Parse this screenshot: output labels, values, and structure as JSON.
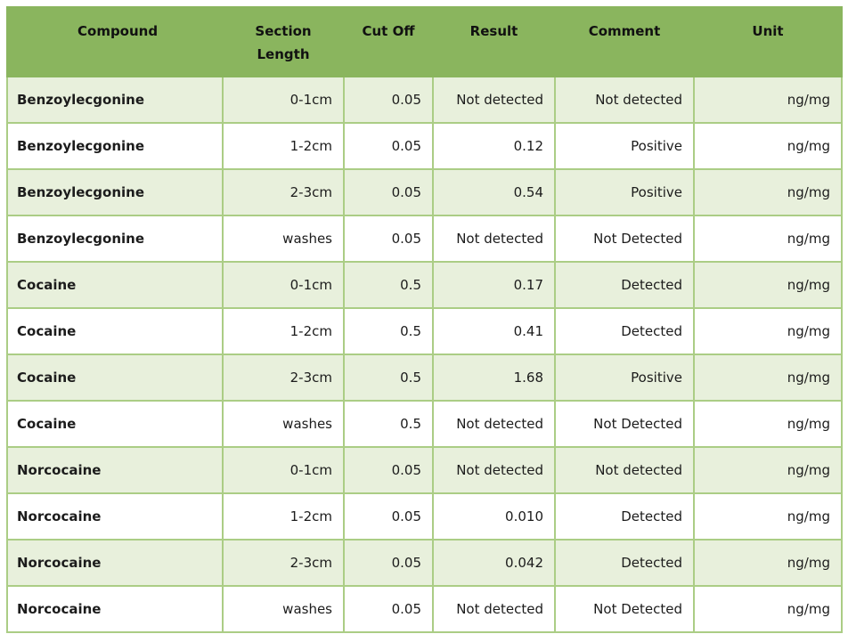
{
  "colors": {
    "header_bg": "#8ab55e",
    "row_alt_bg": "#e8f0dc",
    "border_green": "#abcd85",
    "text": "#1c1c1c"
  },
  "table": {
    "columns": [
      {
        "label": "Compound",
        "align": "left"
      },
      {
        "label": "Section Length",
        "align": "right"
      },
      {
        "label": "Cut Off",
        "align": "right"
      },
      {
        "label": "Result",
        "align": "right"
      },
      {
        "label": "Comment",
        "align": "right"
      },
      {
        "label": "Unit",
        "align": "right"
      }
    ],
    "rows": [
      {
        "cells": [
          "Benzoylecgonine",
          "0-1cm",
          "0.05",
          "Not detected",
          "Not detected",
          "ng/mg"
        ]
      },
      {
        "cells": [
          "Benzoylecgonine",
          "1-2cm",
          "0.05",
          "0.12",
          "Positive",
          "ng/mg"
        ]
      },
      {
        "cells": [
          "Benzoylecgonine",
          "2-3cm",
          "0.05",
          "0.54",
          "Positive",
          "ng/mg"
        ]
      },
      {
        "cells": [
          "Benzoylecgonine",
          "washes",
          "0.05",
          "Not detected",
          "Not Detected",
          "ng/mg"
        ]
      },
      {
        "cells": [
          "Cocaine",
          "0-1cm",
          "0.5",
          "0.17",
          "Detected",
          "ng/mg"
        ]
      },
      {
        "cells": [
          "Cocaine",
          "1-2cm",
          "0.5",
          "0.41",
          "Detected",
          "ng/mg"
        ]
      },
      {
        "cells": [
          "Cocaine",
          "2-3cm",
          "0.5",
          "1.68",
          "Positive",
          "ng/mg"
        ]
      },
      {
        "cells": [
          "Cocaine",
          "washes",
          "0.5",
          "Not detected",
          "Not Detected",
          "ng/mg"
        ]
      },
      {
        "cells": [
          "Norcocaine",
          "0-1cm",
          "0.05",
          "Not detected",
          "Not detected",
          "ng/mg"
        ]
      },
      {
        "cells": [
          "Norcocaine",
          "1-2cm",
          "0.05",
          "0.010",
          "Detected",
          "ng/mg"
        ]
      },
      {
        "cells": [
          "Norcocaine",
          "2-3cm",
          "0.05",
          "0.042",
          "Detected",
          "ng/mg"
        ]
      },
      {
        "cells": [
          "Norcocaine",
          "washes",
          "0.05",
          "Not detected",
          "Not Detected",
          "ng/mg"
        ]
      }
    ]
  }
}
